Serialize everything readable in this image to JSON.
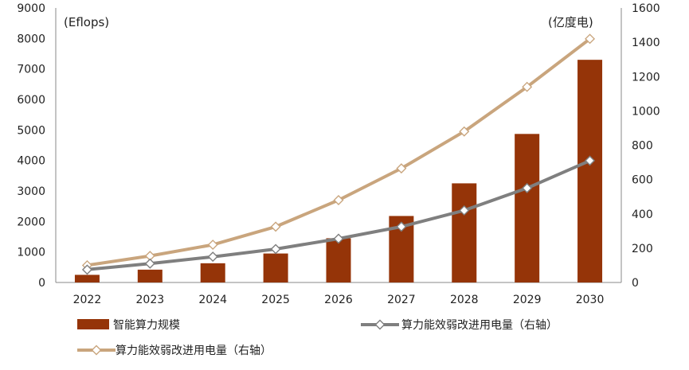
{
  "chart_data": {
    "type": "bar",
    "categories": [
      "2022",
      "2023",
      "2024",
      "2025",
      "2026",
      "2027",
      "2028",
      "2029",
      "2030"
    ],
    "series": [
      {
        "name": "智能算力规模",
        "type": "bar",
        "axis": "left",
        "color": "#953408",
        "values": [
          250,
          420,
          630,
          950,
          1450,
          2180,
          3250,
          4870,
          7300
        ]
      },
      {
        "name": "算力能效弱改进用电量（右轴）",
        "type": "line",
        "axis": "right",
        "color": "#7f7f7f",
        "values": [
          75,
          110,
          150,
          195,
          255,
          325,
          420,
          550,
          710
        ]
      },
      {
        "name": "算力能效弱改进用电量（右轴）",
        "type": "line",
        "axis": "right",
        "color": "#c9a57d",
        "values": [
          100,
          155,
          220,
          325,
          480,
          665,
          880,
          1140,
          1420
        ]
      }
    ],
    "y_left": {
      "unit_label": "(Eflops)",
      "ticks": [
        "0",
        "1000",
        "2000",
        "3000",
        "4000",
        "5000",
        "6000",
        "7000",
        "8000",
        "9000"
      ],
      "min": 0,
      "max": 9000
    },
    "y_right": {
      "unit_label": "(亿度电)",
      "ticks": [
        "0",
        "200",
        "400",
        "600",
        "800",
        "1000",
        "1200",
        "1400",
        "1600"
      ],
      "min": 0,
      "max": 1600
    },
    "grid": false,
    "legend_position": "bottom"
  }
}
